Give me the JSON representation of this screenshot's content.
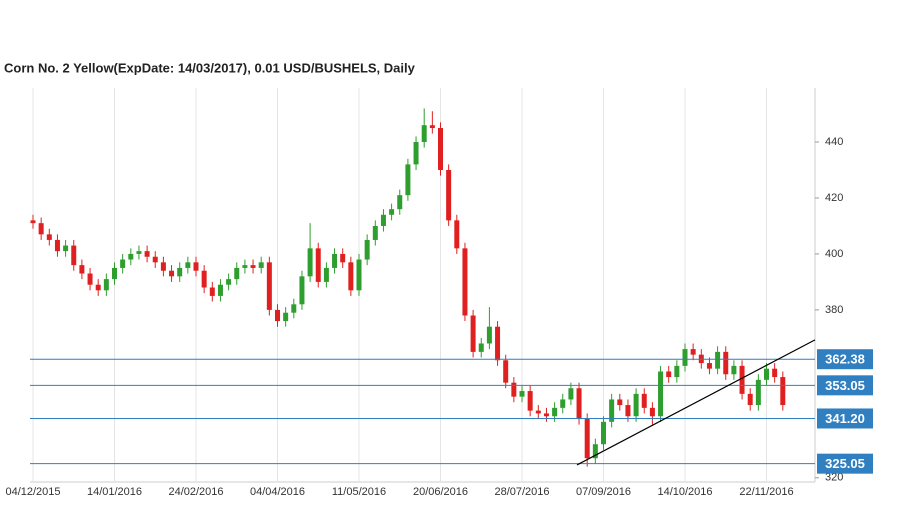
{
  "chart_data": {
    "type": "candlestick",
    "title": "Corn  No. 2 Yellow(ExpDate: 14/03/2017), 0.01 USD/BUSHELS, Daily",
    "categories": [
      "04/12/2015",
      null,
      null,
      null,
      null,
      null,
      null,
      null,
      null,
      null,
      "14/01/2016",
      null,
      null,
      null,
      null,
      null,
      null,
      null,
      null,
      null,
      "24/02/2016",
      null,
      null,
      null,
      null,
      null,
      null,
      null,
      null,
      null,
      "04/04/2016",
      null,
      null,
      null,
      null,
      null,
      null,
      null,
      null,
      null,
      "11/05/2016",
      null,
      null,
      null,
      null,
      null,
      null,
      null,
      null,
      null,
      "20/06/2016",
      null,
      null,
      null,
      null,
      null,
      null,
      null,
      null,
      null,
      "28/07/2016",
      null,
      null,
      null,
      null,
      null,
      null,
      null,
      null,
      null,
      "07/09/2016",
      null,
      null,
      null,
      null,
      null,
      null,
      null,
      null,
      null,
      "14/10/2016",
      null,
      null,
      null,
      null,
      null,
      null,
      null,
      null,
      null,
      "22/11/2016",
      null,
      null
    ],
    "open": [
      412,
      411,
      407,
      405,
      401,
      403,
      396,
      393,
      389,
      387,
      391,
      395,
      398,
      400,
      401,
      399,
      397,
      394,
      392,
      395,
      397,
      394,
      388,
      385,
      389,
      391,
      395,
      396,
      395,
      397,
      380,
      376,
      379,
      382,
      392,
      402,
      390,
      395,
      400,
      397,
      387,
      398,
      405,
      410,
      414,
      416,
      421,
      432,
      440,
      446,
      445,
      430,
      412,
      402,
      378,
      365,
      368,
      374,
      362,
      354,
      349,
      351,
      344,
      343,
      342,
      345,
      348,
      352,
      341,
      327,
      332,
      340,
      348,
      346,
      342,
      350,
      345,
      342,
      358,
      356,
      360,
      366,
      364,
      361,
      359,
      365,
      357,
      360,
      350,
      346,
      355,
      359,
      356
    ],
    "high": [
      414,
      413,
      409,
      407,
      405,
      405,
      398,
      395,
      391,
      393,
      397,
      400,
      402,
      403,
      403,
      401,
      399,
      396,
      397,
      399,
      399,
      396,
      390,
      391,
      393,
      397,
      398,
      398,
      399,
      399,
      382,
      381,
      384,
      394,
      411,
      404,
      397,
      402,
      402,
      399,
      400,
      407,
      412,
      416,
      418,
      423,
      434,
      442,
      452,
      451,
      447,
      432,
      414,
      404,
      380,
      370,
      381,
      376,
      364,
      356,
      353,
      353,
      346,
      345,
      347,
      350,
      354,
      354,
      343,
      334,
      342,
      350,
      350,
      348,
      352,
      352,
      347,
      360,
      360,
      362,
      368,
      368,
      366,
      363,
      367,
      367,
      362,
      362,
      352,
      357,
      361,
      361,
      358
    ],
    "low": [
      409,
      405,
      403,
      399,
      399,
      394,
      391,
      387,
      385,
      385,
      389,
      393,
      396,
      398,
      397,
      395,
      392,
      390,
      390,
      393,
      392,
      386,
      383,
      383,
      387,
      389,
      393,
      393,
      393,
      378,
      374,
      374,
      377,
      380,
      390,
      388,
      388,
      393,
      395,
      385,
      385,
      396,
      403,
      408,
      412,
      414,
      419,
      430,
      438,
      443,
      428,
      410,
      400,
      376,
      363,
      363,
      366,
      360,
      352,
      347,
      347,
      342,
      341,
      340,
      340,
      343,
      346,
      339,
      324,
      325,
      330,
      338,
      344,
      340,
      340,
      343,
      339,
      340,
      354,
      354,
      358,
      362,
      359,
      357,
      357,
      355,
      355,
      348,
      344,
      344,
      353,
      354,
      344
    ],
    "close": [
      411,
      407,
      405,
      401,
      403,
      396,
      393,
      389,
      387,
      391,
      395,
      398,
      400,
      401,
      399,
      397,
      394,
      392,
      395,
      397,
      394,
      388,
      385,
      389,
      391,
      395,
      396,
      395,
      397,
      380,
      376,
      379,
      382,
      392,
      402,
      390,
      395,
      400,
      397,
      387,
      398,
      405,
      410,
      414,
      416,
      421,
      432,
      440,
      446,
      445,
      430,
      412,
      402,
      378,
      365,
      368,
      374,
      362,
      354,
      349,
      351,
      344,
      343,
      342,
      345,
      348,
      352,
      341,
      327,
      332,
      340,
      348,
      346,
      342,
      350,
      345,
      342,
      358,
      356,
      360,
      366,
      364,
      361,
      359,
      365,
      357,
      360,
      350,
      346,
      355,
      359,
      356,
      346
    ],
    "up_color": "#2e9e2e",
    "down_color": "#e02020",
    "ylim": [
      318.5,
      459.3
    ],
    "yticks": [
      320,
      380,
      400,
      420,
      440
    ],
    "grid": true,
    "levels": {
      "values": [
        362.38,
        353.05,
        341.2,
        325.05
      ],
      "value_labels": [
        "362.38",
        "353.05",
        "341.20",
        "325.05"
      ],
      "color": "#2f7fc1"
    },
    "trendline": {
      "values": [
        324.6,
        369.3
      ],
      "color": "#000000"
    }
  }
}
